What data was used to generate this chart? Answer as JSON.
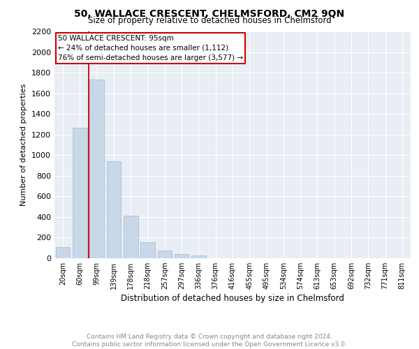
{
  "title": "50, WALLACE CRESCENT, CHELMSFORD, CM2 9QN",
  "subtitle": "Size of property relative to detached houses in Chelmsford",
  "xlabel": "Distribution of detached houses by size in Chelmsford",
  "ylabel": "Number of detached properties",
  "categories": [
    "20sqm",
    "60sqm",
    "99sqm",
    "139sqm",
    "178sqm",
    "218sqm",
    "257sqm",
    "297sqm",
    "336sqm",
    "376sqm",
    "416sqm",
    "455sqm",
    "495sqm",
    "534sqm",
    "574sqm",
    "613sqm",
    "653sqm",
    "692sqm",
    "732sqm",
    "771sqm",
    "811sqm"
  ],
  "values": [
    110,
    1265,
    1730,
    940,
    415,
    155,
    75,
    40,
    25,
    0,
    0,
    0,
    0,
    0,
    0,
    0,
    0,
    0,
    0,
    0,
    0
  ],
  "bar_color": "#c8d8e8",
  "bar_edge_color": "#a0b8d0",
  "vline_x": 1.5,
  "vline_color": "#cc0000",
  "annotation_text": "50 WALLACE CRESCENT: 95sqm\n← 24% of detached houses are smaller (1,112)\n76% of semi-detached houses are larger (3,577) →",
  "annotation_box_color": "#ffffff",
  "annotation_box_edge": "#cc0000",
  "ylim": [
    0,
    2200
  ],
  "yticks": [
    0,
    200,
    400,
    600,
    800,
    1000,
    1200,
    1400,
    1600,
    1800,
    2000,
    2200
  ],
  "footer_line1": "Contains HM Land Registry data © Crown copyright and database right 2024.",
  "footer_line2": "Contains public sector information licensed under the Open Government Licence v3.0.",
  "bg_color": "#e8eef4",
  "grid_color": "#ffffff"
}
